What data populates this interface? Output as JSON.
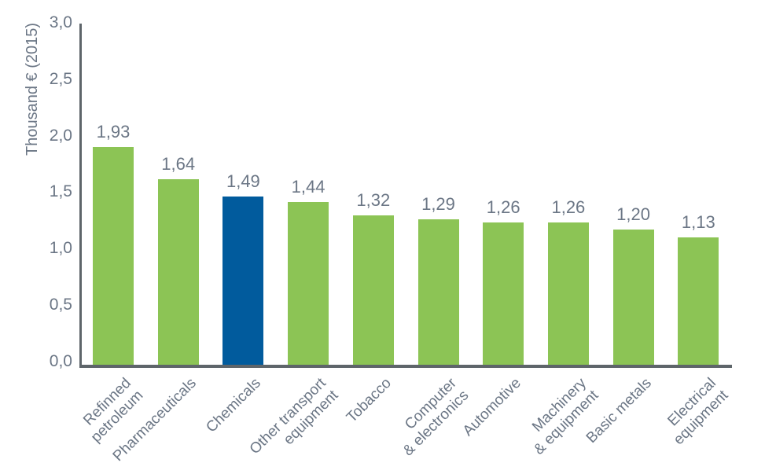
{
  "colors": {
    "bar_default": "#8CC455",
    "bar_highlight": "#015B9D",
    "axis": "#5E656A",
    "text": "#6B7685"
  },
  "chart_data": {
    "type": "bar",
    "title": "",
    "xlabel": "",
    "ylabel": "Thousand € (2015)",
    "ylim": [
      0,
      3
    ],
    "grid": false,
    "legend_position": "none",
    "decimal_style": "comma",
    "y_ticks": [
      {
        "label": "3,0",
        "value": 3.0
      },
      {
        "label": "2,5",
        "value": 2.5
      },
      {
        "label": "2,0",
        "value": 2.0
      },
      {
        "label": "1,5",
        "value": 1.5
      },
      {
        "label": "1,0",
        "value": 1.0
      },
      {
        "label": "0,5",
        "value": 0.5
      },
      {
        "label": "0,0",
        "value": 0.0
      }
    ],
    "categories": [
      "Refinned\npetroleum",
      "Pharmaceuticals",
      "Chemicals",
      "Other transport\nequipment",
      "Tobacco",
      "Computer\n& electronics",
      "Automotive",
      "Machinery\n& equipment",
      "Basic metals",
      "Electrical\nequipment"
    ],
    "values": [
      1.93,
      1.64,
      1.49,
      1.44,
      1.32,
      1.29,
      1.26,
      1.26,
      1.2,
      1.13
    ],
    "value_labels": [
      "1,93",
      "1,64",
      "1,49",
      "1,44",
      "1,32",
      "1,29",
      "1,26",
      "1,26",
      "1,20",
      "1,13"
    ],
    "highlight_index": 2,
    "highlight_category": "Chemicals"
  }
}
